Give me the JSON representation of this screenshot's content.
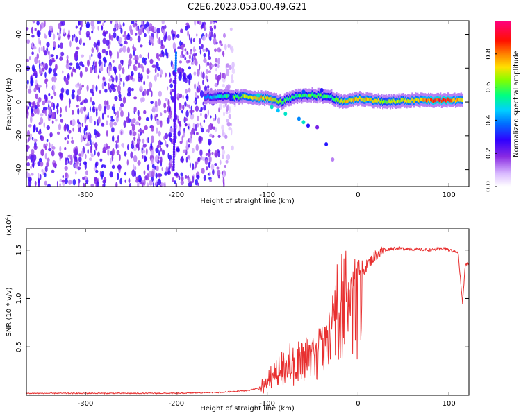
{
  "title": "C2E6.2023.053.00.49.G21",
  "chart_data": [
    {
      "type": "heatmap",
      "xlabel": "Height of straight line (km)",
      "ylabel": "Frequency (Hz)",
      "xlim": [
        -365,
        122
      ],
      "ylim": [
        -50,
        48
      ],
      "xticks": [
        -300,
        -200,
        -100,
        0,
        100
      ],
      "yticks": [
        -40,
        -20,
        0,
        20,
        40
      ],
      "colorbar": {
        "label": "Normalized spectral amplitude",
        "range": [
          0,
          1
        ],
        "ticks": [
          0.0,
          0.2,
          0.4,
          0.6,
          0.8
        ],
        "tick_labels": [
          "0.0",
          "0.2",
          "0.4",
          "0.6",
          "0.8"
        ],
        "colors": [
          "#ffffff",
          "#d8b8ff",
          "#9030ff",
          "#5a00e0",
          "#0000ff",
          "#00c8ff",
          "#00ff60",
          "#c8ff00",
          "#ff9000",
          "#ff0000",
          "#ff0080"
        ]
      },
      "noise_region": {
        "x_range": [
          -365,
          -130
        ],
        "typical_amplitude": 0.18
      },
      "ridge": {
        "description_points": [
          {
            "x": -170,
            "y": 3,
            "amp": 0.4
          },
          {
            "x": -140,
            "y": 3,
            "amp": 0.55
          },
          {
            "x": -120,
            "y": 3,
            "amp": 0.7
          },
          {
            "x": -100,
            "y": 2,
            "amp": 0.75
          },
          {
            "x": -85,
            "y": 0,
            "amp": 0.6
          },
          {
            "x": -70,
            "y": 3,
            "amp": 0.55
          },
          {
            "x": -50,
            "y": 4,
            "amp": 0.6
          },
          {
            "x": -30,
            "y": 3,
            "amp": 0.55
          },
          {
            "x": -20,
            "y": 0,
            "amp": 0.7
          },
          {
            "x": 0,
            "y": 2,
            "amp": 0.75
          },
          {
            "x": 30,
            "y": 0,
            "amp": 0.65
          },
          {
            "x": 60,
            "y": 1,
            "amp": 0.7
          },
          {
            "x": 90,
            "y": 1,
            "amp": 0.9
          },
          {
            "x": 115,
            "y": 1,
            "amp": 0.7
          }
        ]
      }
    },
    {
      "type": "line",
      "xlabel": "Height of straight line (km)",
      "ylabel": "SNR (10 * v/v)",
      "y_multiplier": "(x10",
      "y_multiplier_exp": "4",
      "y_multiplier_close": ")",
      "xlim": [
        -365,
        122
      ],
      "ylim": [
        0,
        1.72
      ],
      "xticks": [
        -300,
        -200,
        -100,
        0,
        100
      ],
      "yticks": [
        0.5,
        1.0,
        1.5
      ],
      "ytick_labels": [
        "0.5",
        "1.0",
        "1.5"
      ],
      "color": "#e83030",
      "series": [
        {
          "x": [
            -365,
            -300,
            -200,
            -150,
            -120,
            -100,
            -90,
            -80,
            -70,
            -60,
            -50,
            -40,
            -30,
            -20,
            -10,
            0,
            10,
            20,
            30,
            40,
            60,
            80,
            95,
            100,
            110,
            115,
            118,
            122
          ],
          "y": [
            0.02,
            0.02,
            0.02,
            0.03,
            0.05,
            0.1,
            0.2,
            0.28,
            0.32,
            0.38,
            0.45,
            0.55,
            0.7,
            0.85,
            1.0,
            1.2,
            1.35,
            1.45,
            1.5,
            1.52,
            1.51,
            1.5,
            1.52,
            1.5,
            1.48,
            0.95,
            1.35,
            1.36
          ],
          "spike_envelope": [
            {
              "x": -100,
              "max": 0.25
            },
            {
              "x": -80,
              "max": 0.52
            },
            {
              "x": -60,
              "max": 0.6
            },
            {
              "x": -40,
              "max": 0.72
            },
            {
              "x": -30,
              "max": 0.9
            },
            {
              "x": -20,
              "max": 1.58
            },
            {
              "x": -10,
              "max": 1.45
            },
            {
              "x": 0,
              "max": 1.4
            }
          ]
        }
      ]
    }
  ]
}
